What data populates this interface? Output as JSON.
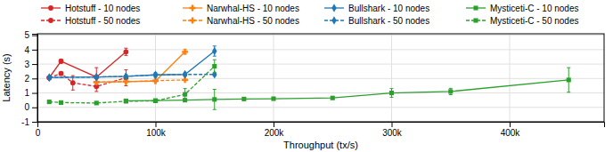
{
  "chart_data": {
    "type": "line",
    "x_label": "Throughput (tx/s)",
    "y_label": "Latency (s)",
    "xlim": [
      0,
      480000
    ],
    "ylim": [
      -1.0,
      5.1
    ],
    "xticks": [
      0,
      {
        "value": 100000,
        "label": "100k"
      },
      {
        "value": 200000,
        "label": "200k"
      },
      {
        "value": 300000,
        "label": "300k"
      },
      {
        "value": 400000,
        "label": "400k"
      }
    ],
    "yticks": [
      -1,
      0,
      1,
      2,
      3,
      4,
      5
    ],
    "grid": true,
    "legend": "top",
    "series": [
      {
        "name": "Hotstuff - 10 nodes",
        "color": "#d62728",
        "marker": "circle",
        "line_style": "solid",
        "x": [
          10000,
          20000,
          50000,
          75000
        ],
        "values": [
          2.05,
          3.2,
          2.1,
          3.85
        ],
        "error_minus": [
          0.05,
          0.15,
          0.65,
          0.25
        ],
        "error_plus": [
          0.05,
          0.15,
          0.65,
          0.25
        ]
      },
      {
        "name": "Hotstuff - 50 nodes",
        "color": "#d62728",
        "marker": "circle",
        "line_style": "dashed",
        "x": [
          10000,
          20000,
          30000,
          50000,
          75000
        ],
        "values": [
          2.05,
          2.35,
          1.7,
          1.45,
          2.05
        ],
        "error_minus": [
          0.05,
          0.1,
          0.5,
          0.35,
          0.55
        ],
        "error_plus": [
          0.05,
          0.1,
          0.5,
          0.35,
          0.55
        ]
      },
      {
        "name": "Narwhal-HS - 10 nodes",
        "color": "#ff7f0e",
        "marker": "plus",
        "line_style": "solid",
        "x": [
          50000,
          75000,
          100000,
          125000
        ],
        "values": [
          1.75,
          1.78,
          1.82,
          3.85
        ],
        "error_minus": [
          0.05,
          0.05,
          0.05,
          0.15
        ],
        "error_plus": [
          0.05,
          0.05,
          0.05,
          0.15
        ]
      },
      {
        "name": "Narwhal-HS - 50 nodes",
        "color": "#ff7f0e",
        "marker": "plus",
        "line_style": "dashed",
        "x": [
          50000,
          75000,
          100000,
          125000
        ],
        "values": [
          1.75,
          1.78,
          1.85,
          1.9
        ],
        "error_minus": [
          0.05,
          0.05,
          0.05,
          0.05
        ],
        "error_plus": [
          0.05,
          0.05,
          0.05,
          0.05
        ]
      },
      {
        "name": "Bullshark - 10 nodes",
        "color": "#1f77b4",
        "marker": "diamond",
        "line_style": "solid",
        "x": [
          10000,
          50000,
          75000,
          100000,
          125000,
          150000
        ],
        "values": [
          2.07,
          2.1,
          2.15,
          2.25,
          2.28,
          3.9
        ],
        "error_minus": [
          0.05,
          0.05,
          0.05,
          0.15,
          0.1,
          0.35
        ],
        "error_plus": [
          0.05,
          0.05,
          0.05,
          0.15,
          0.1,
          0.35
        ]
      },
      {
        "name": "Bullshark - 50 nodes",
        "color": "#1f77b4",
        "marker": "diamond",
        "line_style": "dashed",
        "x": [
          10000,
          50000,
          75000,
          100000,
          125000,
          150000
        ],
        "values": [
          2.07,
          2.1,
          2.15,
          2.25,
          2.28,
          2.28
        ],
        "error_minus": [
          0.05,
          0.05,
          0.05,
          0.1,
          0.1,
          0.1
        ],
        "error_plus": [
          0.05,
          0.05,
          0.05,
          0.1,
          0.1,
          0.1
        ]
      },
      {
        "name": "Mysticeti-C - 10 nodes",
        "color": "#2ca02c",
        "marker": "square",
        "line_style": "solid",
        "x": [
          75000,
          100000,
          125000,
          150000,
          175000,
          200000,
          250000,
          300000,
          350000,
          450000
        ],
        "values": [
          0.45,
          0.47,
          0.5,
          0.55,
          0.58,
          0.6,
          0.65,
          1.0,
          1.1,
          1.9
        ],
        "error_minus": [
          0.05,
          0.04,
          0.04,
          0.7,
          0.04,
          0.04,
          0.04,
          0.3,
          0.22,
          0.85
        ],
        "error_plus": [
          0.05,
          0.04,
          0.04,
          0.7,
          0.04,
          0.04,
          0.04,
          0.3,
          0.22,
          0.85
        ]
      },
      {
        "name": "Mysticeti-C - 50 nodes",
        "color": "#2ca02c",
        "marker": "square",
        "line_style": "dashed",
        "x": [
          10000,
          20000,
          50000,
          75000,
          100000,
          125000,
          150000
        ],
        "values": [
          0.38,
          0.33,
          0.3,
          0.42,
          0.45,
          0.9,
          2.85
        ],
        "error_minus": [
          0.05,
          0.08,
          0.08,
          0.08,
          0.08,
          0.4,
          0.45
        ],
        "error_plus": [
          0.05,
          0.08,
          0.08,
          0.08,
          0.08,
          0.4,
          0.45
        ]
      }
    ]
  }
}
